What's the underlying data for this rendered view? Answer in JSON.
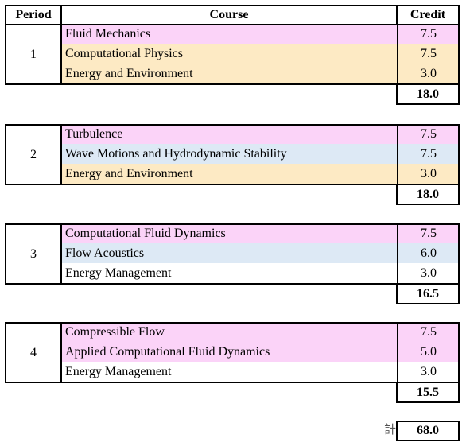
{
  "header": {
    "period": "Period",
    "course": "Course",
    "credit": "Credit"
  },
  "groups": [
    {
      "period": "1",
      "rows": [
        {
          "course": "Fluid Mechanics",
          "credit": "7.5",
          "color": "#fbd3f8"
        },
        {
          "course": "Computational Physics",
          "credit": "7.5",
          "color": "#fdeac4"
        },
        {
          "course": "Energy and Environment",
          "credit": "3.0",
          "color": "#fdeac4"
        }
      ],
      "total": "18.0"
    },
    {
      "period": "2",
      "rows": [
        {
          "course": "Turbulence",
          "credit": "7.5",
          "color": "#fbd3f8"
        },
        {
          "course": "Wave Motions and Hydrodynamic Stability",
          "credit": "7.5",
          "color": "#dde9f5"
        },
        {
          "course": "Energy and Environment",
          "credit": "3.0",
          "color": "#fdeac4"
        }
      ],
      "total": "18.0"
    },
    {
      "period": "3",
      "rows": [
        {
          "course": "Computational Fluid Dynamics",
          "credit": "7.5",
          "color": "#fbd3f8"
        },
        {
          "course": "Flow Acoustics",
          "credit": "6.0",
          "color": "#dde9f5"
        },
        {
          "course": "Energy Management",
          "credit": "3.0",
          "color": "#ffffff"
        }
      ],
      "total": "16.5"
    },
    {
      "period": "4",
      "rows": [
        {
          "course": "Compressible Flow",
          "credit": "7.5",
          "color": "#fbd3f8"
        },
        {
          "course": "Applied Computational Fluid Dynamics",
          "credit": "5.0",
          "color": "#fbd3f8"
        },
        {
          "course": "Energy Management",
          "credit": "3.0",
          "color": "#ffffff"
        }
      ],
      "total": "15.5"
    }
  ],
  "grand_total": {
    "label": "計",
    "value": "68.0"
  }
}
